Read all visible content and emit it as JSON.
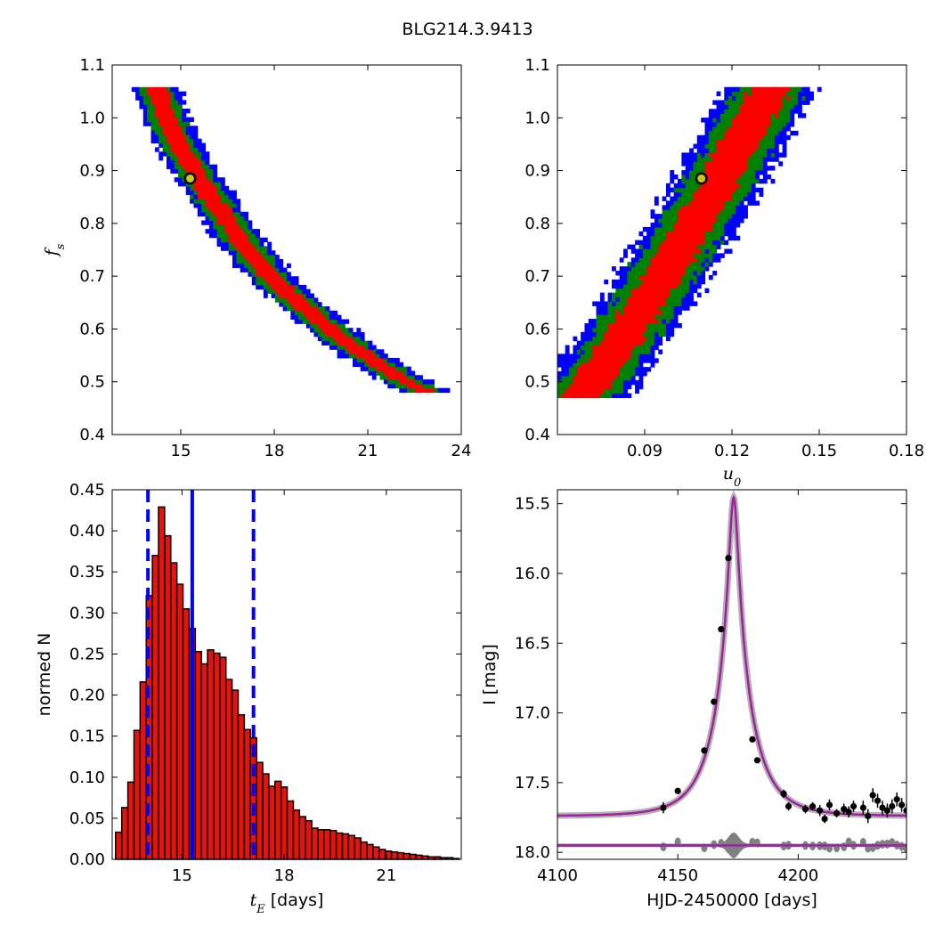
{
  "figure": {
    "title": "BLG214.3.9413"
  },
  "colors": {
    "sigma1": "#ff0000",
    "sigma2": "#008000",
    "sigma3": "#0000ff",
    "hist_bar": "#e8120c",
    "model": "#a020a0",
    "residual": "#808080",
    "best_fit": "#c8c820",
    "vline": "#0000ff"
  },
  "chart_data": [
    {
      "type": "heatmap",
      "panel": "fs-vs-tE",
      "xlabel": "",
      "ylabel": "f_s",
      "xlim": [
        12.8,
        24
      ],
      "ylim": [
        0.4,
        1.1
      ],
      "xticks": [
        "15",
        "18",
        "21",
        "24"
      ],
      "xtick_values": [
        15,
        18,
        21,
        24
      ],
      "yticks": [
        "0.4",
        "0.5",
        "0.6",
        "0.7",
        "0.8",
        "0.9",
        "1.0",
        "1.1"
      ],
      "ytick_values": [
        0.4,
        0.5,
        0.6,
        0.7,
        0.8,
        0.9,
        1.0,
        1.1
      ],
      "contour_ridge": {
        "fs": [
          1.05,
          1.0,
          0.95,
          0.9,
          0.85,
          0.8,
          0.75,
          0.7,
          0.65,
          0.6,
          0.55,
          0.5,
          0.48
        ],
        "tE": [
          14.2,
          14.5,
          14.9,
          15.4,
          15.9,
          16.5,
          17.1,
          17.8,
          18.7,
          19.7,
          20.8,
          22.1,
          22.8
        ]
      },
      "region_half_widths": {
        "sigma1": 0.32,
        "sigma2": 0.55,
        "sigma3": 0.78
      },
      "best_fit": {
        "x": 15.3,
        "y": 0.885
      }
    },
    {
      "type": "heatmap",
      "panel": "fs-vs-u0",
      "xlabel": "u_0",
      "ylabel": "",
      "xlim": [
        0.06,
        0.18
      ],
      "ylim": [
        0.4,
        1.1
      ],
      "xticks": [
        "0.09",
        "0.12",
        "0.15",
        "0.18"
      ],
      "xtick_values": [
        0.09,
        0.12,
        0.15,
        0.18
      ],
      "yticks": [
        "0.4",
        "0.5",
        "0.6",
        "0.7",
        "0.8",
        "0.9",
        "1.0",
        "1.1"
      ],
      "ytick_values": [
        0.4,
        0.5,
        0.6,
        0.7,
        0.8,
        0.9,
        1.0,
        1.1
      ],
      "contour_ridge": {
        "fs": [
          0.47,
          0.55,
          0.65,
          0.75,
          0.85,
          0.95,
          1.05
        ],
        "u0": [
          0.069,
          0.079,
          0.091,
          0.102,
          0.113,
          0.123,
          0.133
        ]
      },
      "region_half_widths": {
        "sigma1": 0.007,
        "sigma2": 0.012,
        "sigma3": 0.016
      },
      "best_fit": {
        "x": 0.1095,
        "y": 0.885
      }
    },
    {
      "type": "bar",
      "panel": "tE-histogram",
      "xlabel": "t_E  [days]",
      "ylabel": "normed N",
      "xlim": [
        12.95,
        23.2
      ],
      "ylim": [
        0,
        0.45
      ],
      "xticks": [
        "15",
        "18",
        "21"
      ],
      "xtick_values": [
        15,
        18,
        21
      ],
      "yticks": [
        "0.00",
        "0.05",
        "0.10",
        "0.15",
        "0.20",
        "0.25",
        "0.30",
        "0.35",
        "0.40",
        "0.45"
      ],
      "ytick_values": [
        0,
        0.05,
        0.1,
        0.15,
        0.2,
        0.25,
        0.3,
        0.35,
        0.4,
        0.45
      ],
      "bin_start": 13.05,
      "bin_width": 0.18,
      "values": [
        0.033,
        0.063,
        0.094,
        0.157,
        0.216,
        0.321,
        0.37,
        0.429,
        0.394,
        0.361,
        0.335,
        0.305,
        0.281,
        0.253,
        0.238,
        0.255,
        0.251,
        0.246,
        0.219,
        0.206,
        0.176,
        0.158,
        0.148,
        0.118,
        0.104,
        0.089,
        0.095,
        0.088,
        0.071,
        0.06,
        0.052,
        0.047,
        0.038,
        0.036,
        0.036,
        0.035,
        0.032,
        0.031,
        0.029,
        0.026,
        0.021,
        0.018,
        0.015,
        0.012,
        0.01,
        0.009,
        0.008,
        0.007,
        0.006,
        0.005,
        0.004,
        0.003,
        0.003,
        0.002,
        0.002,
        0.001
      ],
      "median_line": 15.3,
      "interval_lines": [
        14.0,
        17.1
      ]
    },
    {
      "type": "line",
      "panel": "light-curve",
      "xlabel": "HJD-2450000 [days]",
      "ylabel": "I [mag]",
      "xlim": [
        4100,
        4245
      ],
      "ylim": [
        18.05,
        15.4
      ],
      "xticks": [
        "4100",
        "4150",
        "4200"
      ],
      "xtick_values": [
        4100,
        4150,
        4200
      ],
      "yticks": [
        "15.5",
        "16.0",
        "16.5",
        "17.0",
        "17.5",
        "18.0"
      ],
      "ytick_values": [
        15.5,
        16.0,
        16.5,
        17.0,
        17.5,
        18.0
      ],
      "model": {
        "t0": 4173.2,
        "tE": 15.3,
        "u0": 0.11,
        "fs": 0.885,
        "baseline": 17.74
      },
      "residual_baseline": 17.95,
      "observations": {
        "t": [
          4144,
          4150,
          4161,
          4165,
          4168,
          4171,
          4181,
          4183,
          4194,
          4196,
          4203,
          4206,
          4209,
          4211,
          4213,
          4216,
          4219,
          4221,
          4223,
          4227,
          4229,
          4231,
          4233,
          4235,
          4237,
          4239,
          4241,
          4243,
          4245
        ],
        "mag": [
          17.68,
          17.56,
          17.27,
          16.92,
          16.4,
          15.89,
          17.19,
          17.34,
          17.58,
          17.67,
          17.69,
          17.67,
          17.7,
          17.76,
          17.66,
          17.72,
          17.69,
          17.71,
          17.67,
          17.68,
          17.74,
          17.59,
          17.63,
          17.68,
          17.7,
          17.67,
          17.62,
          17.66,
          17.7
        ],
        "err": [
          0.04,
          0.02,
          0.02,
          0.02,
          0.02,
          0.01,
          0.02,
          0.02,
          0.03,
          0.03,
          0.03,
          0.03,
          0.04,
          0.03,
          0.04,
          0.03,
          0.04,
          0.04,
          0.04,
          0.05,
          0.05,
          0.05,
          0.05,
          0.05,
          0.05,
          0.05,
          0.05,
          0.05,
          0.05
        ]
      }
    }
  ]
}
